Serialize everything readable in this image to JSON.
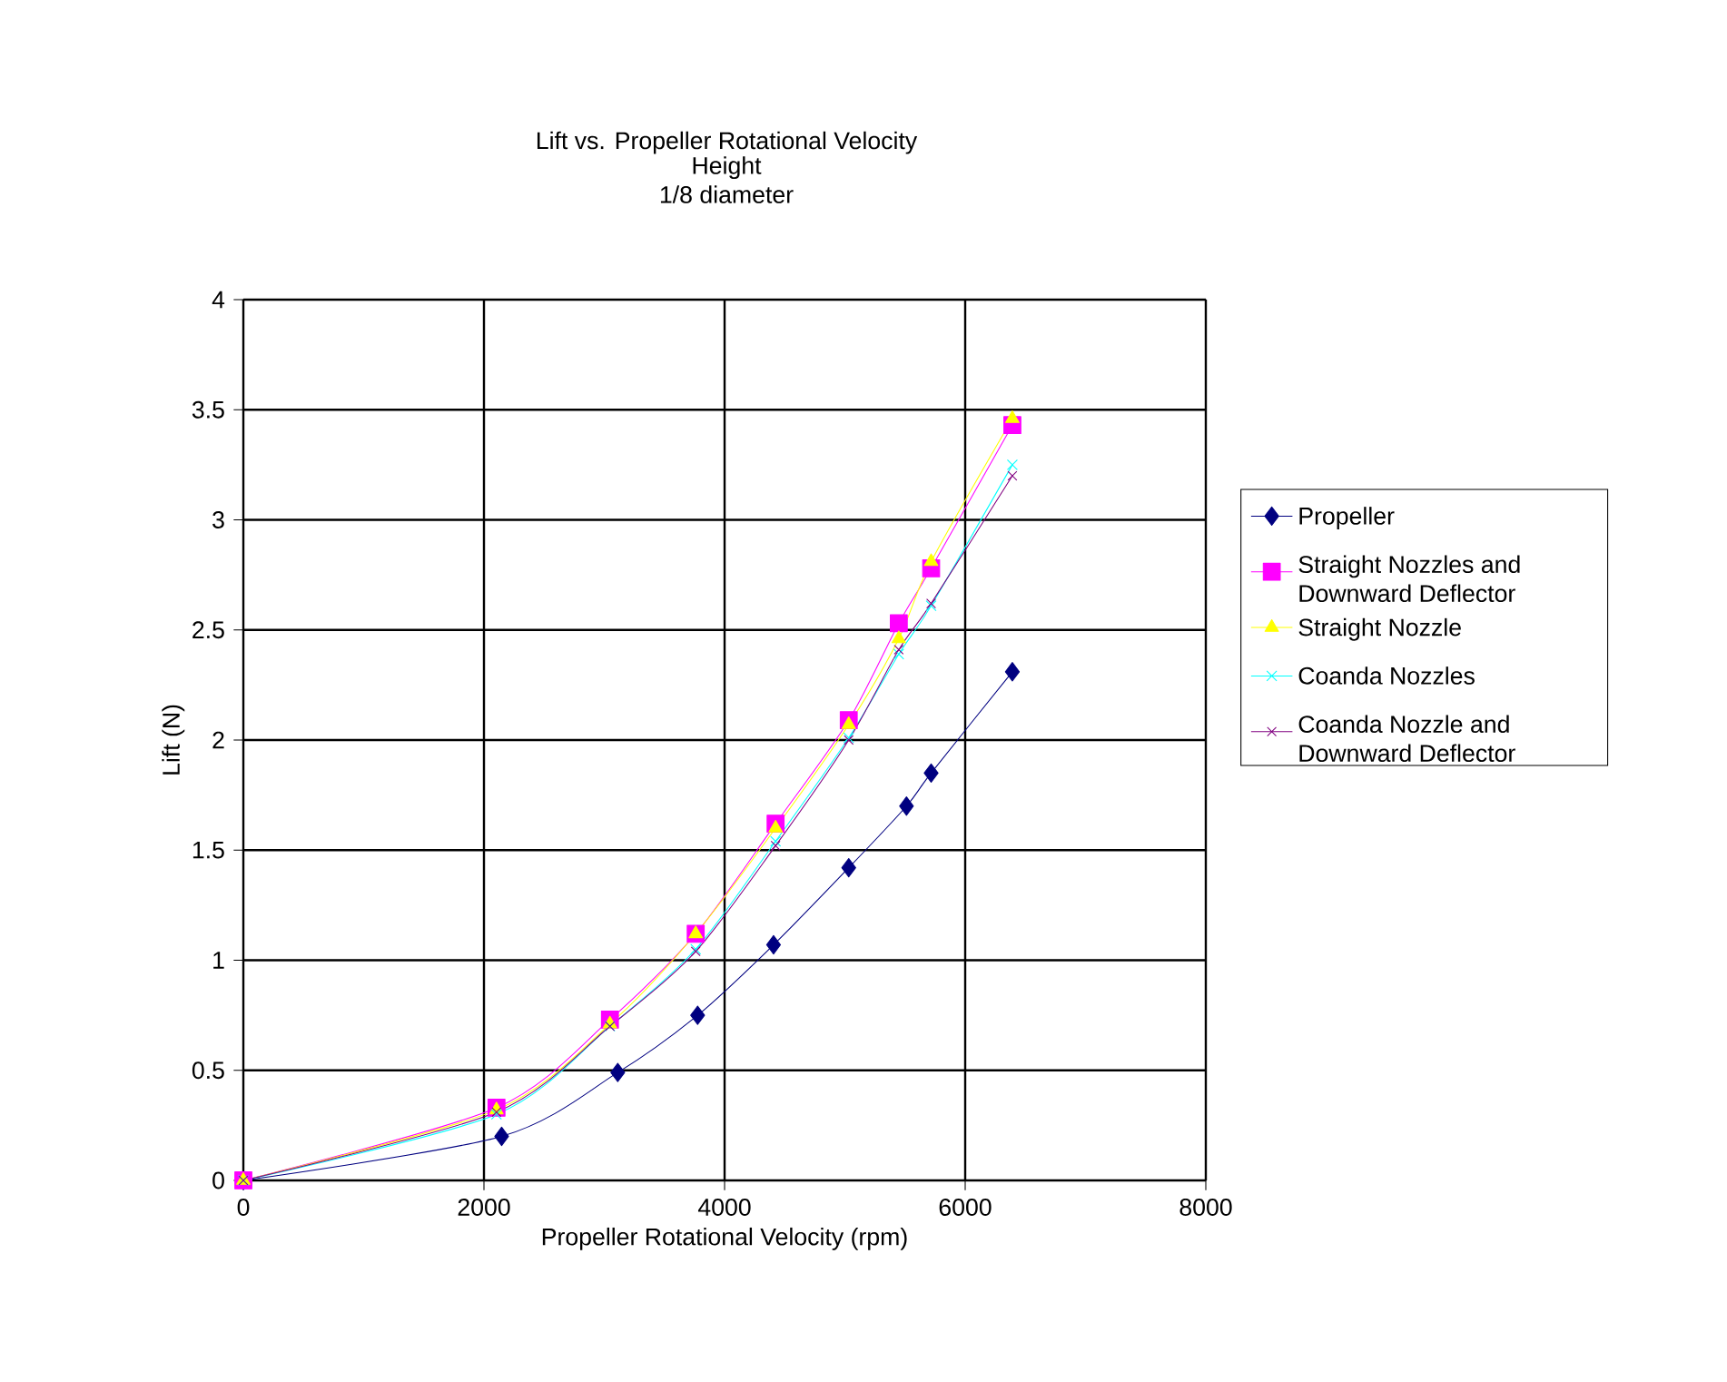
{
  "chart_data": {
    "type": "line",
    "title": "Lift vs. Propeller Rotational Velocity",
    "subtitle": "Height 1/8 diameter",
    "xlabel": "Propeller Rotational Velocity (rpm)",
    "ylabel": "Lift (N)",
    "xlim": [
      0,
      8000
    ],
    "xticks": [
      0,
      2000,
      4000,
      6000,
      8000
    ],
    "ylim": [
      0,
      4
    ],
    "yticks": [
      0,
      0.5,
      1,
      1.5,
      2,
      2.5,
      3,
      3.5,
      4
    ],
    "grid": true,
    "legend": "right",
    "series": [
      {
        "name": "Propeller",
        "color": "#000080",
        "marker": "diamond",
        "x": [
          0,
          2147,
          3112,
          3776,
          4407,
          5032,
          5512,
          5717,
          6392
        ],
        "values": [
          0,
          0.2,
          0.49,
          0.75,
          1.07,
          1.42,
          1.7,
          1.85,
          2.31
        ]
      },
      {
        "name": "Straight Nozzles and Downward Deflector",
        "color": "#ff00ff",
        "marker": "square",
        "x": [
          0,
          2104,
          3047,
          3760,
          4424,
          5032,
          5448,
          5717,
          6392
        ],
        "values": [
          0,
          0.33,
          0.73,
          1.12,
          1.62,
          2.09,
          2.53,
          2.78,
          3.43
        ]
      },
      {
        "name": "Straight Nozzle",
        "color": "#ffff00",
        "marker": "triangle",
        "x": [
          0,
          2104,
          3047,
          3760,
          4424,
          5032,
          5448,
          5717,
          6392
        ],
        "values": [
          0,
          0.32,
          0.71,
          1.12,
          1.6,
          2.07,
          2.46,
          2.81,
          3.46
        ]
      },
      {
        "name": "Coanda Nozzles",
        "color": "#00ffff",
        "marker": "cross",
        "x": [
          0,
          2104,
          3047,
          3760,
          4424,
          5032,
          5448,
          5717,
          6392
        ],
        "values": [
          0,
          0.3,
          0.7,
          1.05,
          1.54,
          2.01,
          2.39,
          2.61,
          3.25
        ]
      },
      {
        "name": "Coanda Nozzle and Downward Deflector",
        "color": "#800080",
        "marker": "cross",
        "x": [
          0,
          2104,
          3047,
          3760,
          4424,
          5032,
          5448,
          5717,
          6392
        ],
        "values": [
          0,
          0.31,
          0.7,
          1.04,
          1.52,
          2.0,
          2.41,
          2.62,
          3.2
        ]
      }
    ]
  }
}
